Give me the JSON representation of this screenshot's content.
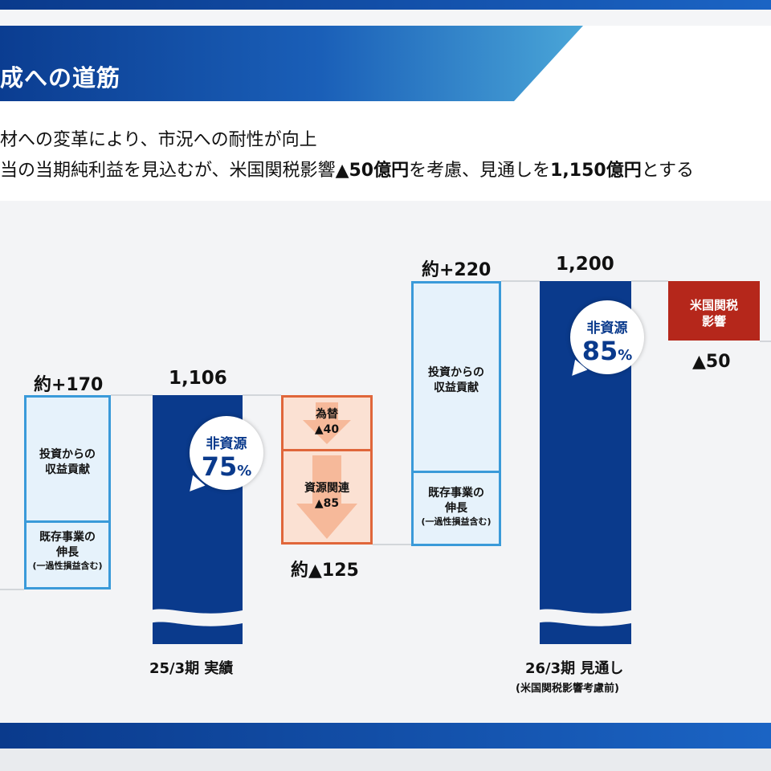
{
  "header": {
    "title": "成への道筋",
    "line1": "材への変革により、市況への耐性が向上",
    "line2_parts": [
      "当の当期純利益を見込むが、米国関税影響",
      "▲50億円",
      "を考慮、見通しを",
      "1,150億円",
      "とする"
    ]
  },
  "chart_data": {
    "type": "waterfall",
    "bars": [
      {
        "label": "約+170",
        "value": 170,
        "kind": "increase",
        "segments": [
          {
            "label": "投資からの収益貢献",
            "lines": [
              "投資からの",
              "収益貢献"
            ]
          },
          {
            "label": "既存事業の伸長 (一過性損益含む)",
            "lines": [
              "既存事業の",
              "伸長"
            ],
            "note": "(一過性損益含む)"
          }
        ]
      },
      {
        "label": "1,106",
        "value": 1106,
        "kind": "total",
        "category": "25/3期 実績",
        "non_resource": "非資源",
        "non_resource_pct": "75",
        "pct_unit": "%"
      },
      {
        "label": "約▲125",
        "value": -125,
        "kind": "decrease",
        "segments": [
          {
            "lines": [
              "為替",
              "▲40"
            ],
            "value": -40
          },
          {
            "lines": [
              "資源関連",
              "▲85"
            ],
            "value": -85
          }
        ]
      },
      {
        "label": "約+220",
        "value": 220,
        "kind": "increase",
        "segments": [
          {
            "lines": [
              "投資からの",
              "収益貢献"
            ]
          },
          {
            "lines": [
              "既存事業の",
              "伸長"
            ],
            "note": "(一過性損益含む)"
          }
        ]
      },
      {
        "label": "1,200",
        "value": 1200,
        "kind": "total",
        "category": "26/3期 見通し",
        "category_note": "(米国関税影響考慮前)",
        "non_resource": "非資源",
        "non_resource_pct": "85",
        "pct_unit": "%"
      },
      {
        "label": "▲50",
        "value": -50,
        "kind": "decrease",
        "box_lines": [
          "米国関税",
          "影響"
        ]
      }
    ],
    "categories": [
      "25/3期 実績",
      "26/3期 見通し"
    ],
    "category_note": "(米国関税影響考慮前)"
  },
  "colors": {
    "dark_bar": "#0a3a8c",
    "increase_border": "#3a9ad9",
    "increase_fill": "#e6f2fb",
    "decrease_border": "#e0663a",
    "decrease_fill": "#fbe1d3",
    "tariff": "#b5271b"
  }
}
